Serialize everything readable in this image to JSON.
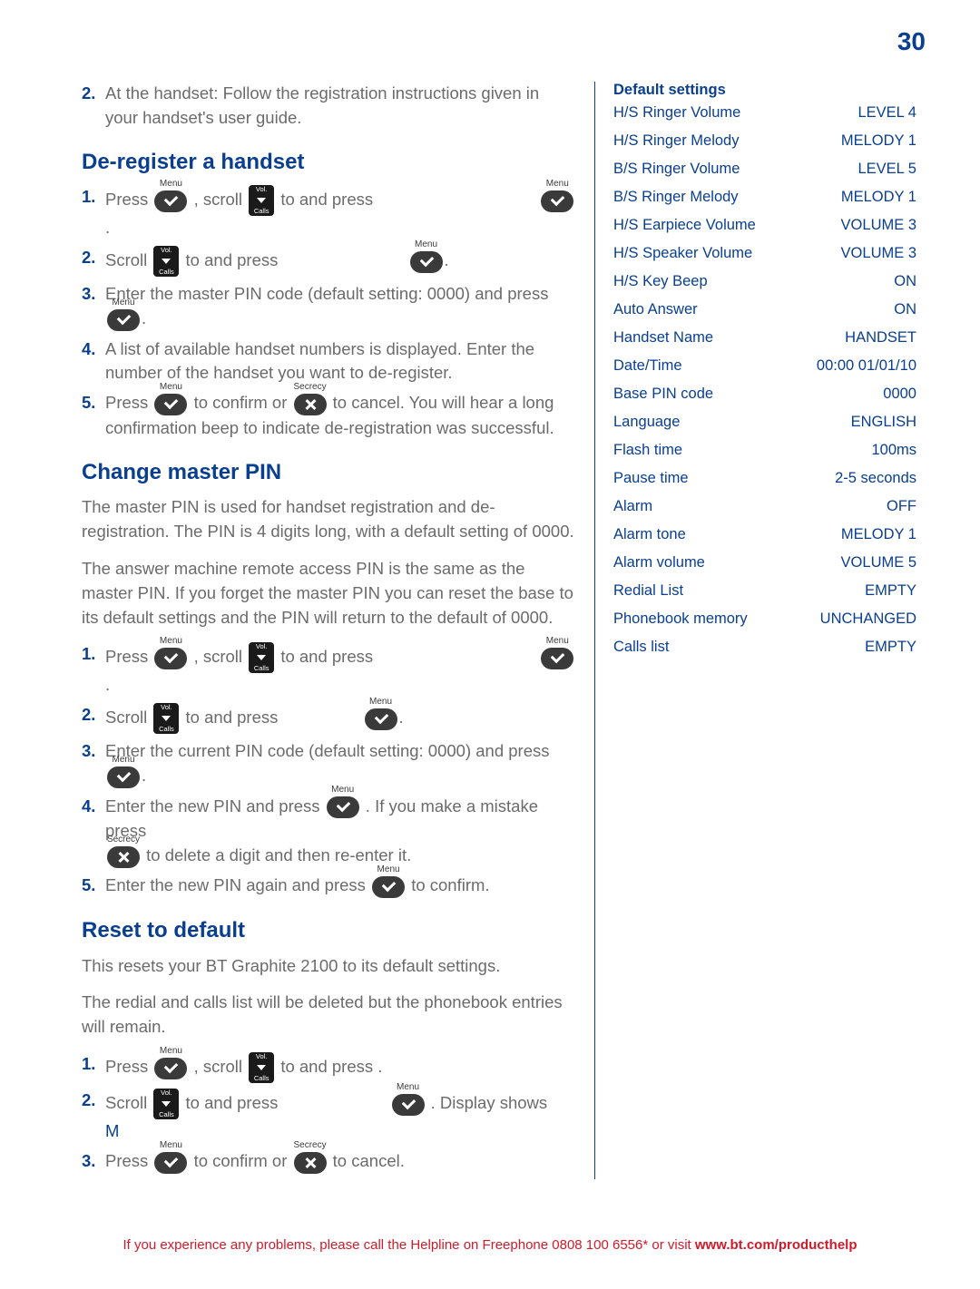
{
  "page_number": "30",
  "colors": {
    "heading_blue": "#0a3f8f",
    "body_grey": "#6b6b6b",
    "footer_red": "#d11a2a",
    "icon_dark": "#3a3a3a",
    "background": "#ffffff"
  },
  "intro_step": {
    "num": "2.",
    "text": "At the handset: Follow the registration instructions given in your handset's user guide."
  },
  "sections": {
    "deregister": {
      "heading": "De-register a handset",
      "steps": {
        "s1": {
          "num": "1.",
          "a": "Press ",
          "b": ", scroll ",
          "c": " to  and press "
        },
        "s2": {
          "num": "2.",
          "a": "Scroll ",
          "b": " to  and press "
        },
        "s3": {
          "num": "3.",
          "text": "Enter the master PIN code (default setting: 0000) and press "
        },
        "s4": {
          "num": "4.",
          "text": "A list of available handset numbers is displayed. Enter the number of the handset you want to de-register."
        },
        "s5": {
          "num": "5.",
          "a": "Press ",
          "b": " to confirm or ",
          "c": " to cancel. You will hear a long confirmation beep to indicate de-registration was successful."
        }
      }
    },
    "changepin": {
      "heading": "Change master PIN",
      "para1": "The master PIN is used for handset registration and de-registration. The PIN is 4 digits long, with a default setting of 0000.",
      "para2": "The answer machine remote access PIN is the same as the master PIN. If you forget the master PIN you can reset the base to its default settings and the PIN will return to the default of 0000.",
      "steps": {
        "s1": {
          "num": "1.",
          "a": "Press ",
          "b": ", scroll ",
          "c": " to  and press "
        },
        "s2": {
          "num": "2.",
          "a": "Scroll ",
          "b": " to  and press "
        },
        "s3": {
          "num": "3.",
          "text": "Enter the current PIN code (default setting: 0000) and press "
        },
        "s4": {
          "num": "4.",
          "a": "Enter the new PIN and press ",
          "b": ". If you make a mistake press ",
          "c": " to delete a digit and then re-enter it."
        },
        "s5": {
          "num": "5.",
          "a": "Enter the new PIN again and press ",
          "b": " to confirm."
        }
      }
    },
    "reset": {
      "heading": "Reset to default",
      "para1": "This resets your BT Graphite 2100 to its default settings.",
      "para2": "The redial and calls list will be deleted but the phonebook entries will remain.",
      "steps": {
        "s1": {
          "num": "1.",
          "a": "Press ",
          "b": ", scroll ",
          "c": " to  and press ."
        },
        "s2": {
          "num": "2.",
          "a": "Scroll ",
          "b": " to  and press ",
          "c": ". Display shows",
          "line2": " M"
        },
        "s3": {
          "num": "3.",
          "a": "Press ",
          "b": " to confirm or ",
          "c": " to cancel."
        }
      }
    }
  },
  "icon_labels": {
    "menu": "Menu",
    "vol_top": "Vol.",
    "vol_bottom": "Calls",
    "secrecy": "Secrecy"
  },
  "default_settings": {
    "title": "Default settings",
    "rows": [
      {
        "label": "H/S Ringer Volume",
        "value": "LEVEL 4"
      },
      {
        "label": "H/S Ringer Melody",
        "value": "MELODY 1"
      },
      {
        "label": "B/S Ringer Volume",
        "value": "LEVEL 5"
      },
      {
        "label": "B/S Ringer Melody",
        "value": "MELODY 1"
      },
      {
        "label": "H/S Earpiece Volume",
        "value": "VOLUME 3"
      },
      {
        "label": "H/S Speaker Volume",
        "value": "VOLUME 3"
      },
      {
        "label": "H/S Key Beep",
        "value": "ON"
      },
      {
        "label": "Auto Answer",
        "value": "ON"
      },
      {
        "label": "Handset Name",
        "value": "HANDSET"
      },
      {
        "label": "Date/Time",
        "value": "00:00 01/01/10"
      },
      {
        "label": "Base PIN code",
        "value": "0000"
      },
      {
        "label": "Language",
        "value": "ENGLISH"
      },
      {
        "label": "Flash time",
        "value": "100ms"
      },
      {
        "label": "Pause time",
        "value": "2-5 seconds"
      },
      {
        "label": "Alarm",
        "value": "OFF"
      },
      {
        "label": "Alarm tone",
        "value": "MELODY 1"
      },
      {
        "label": "Alarm volume",
        "value": "VOLUME 5"
      },
      {
        "label": "Redial List",
        "value": "EMPTY"
      },
      {
        "label": "Phonebook memory",
        "value": "UNCHANGED"
      },
      {
        "label": "Calls list",
        "value": "EMPTY"
      }
    ]
  },
  "footer": {
    "plain": "If you experience any problems, please call the Helpline on Freephone 0808 100 6556* or visit ",
    "bold": "www.bt.com/producthelp"
  }
}
